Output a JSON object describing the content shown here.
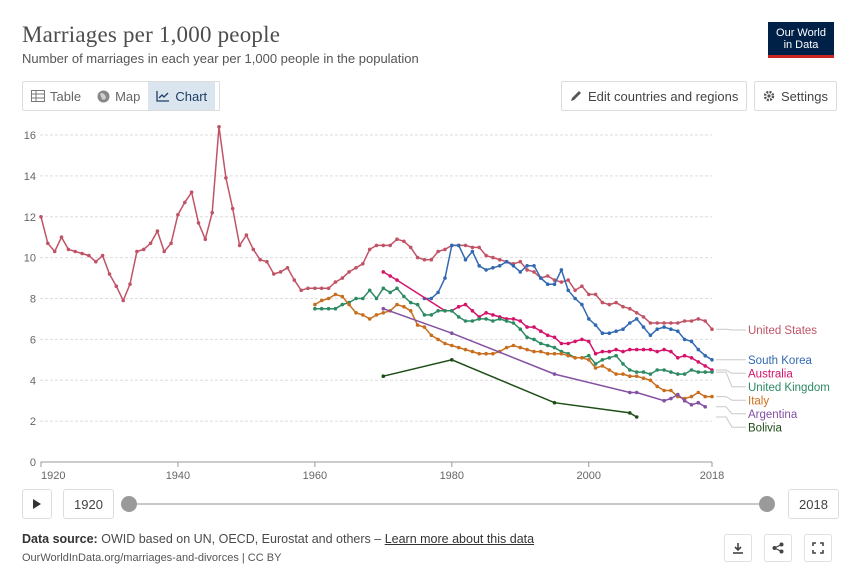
{
  "header": {
    "title": "Marriages per 1,000 people",
    "subtitle": "Number of marriages in each year per 1,000 people in the population",
    "logo_line1": "Our World",
    "logo_line2": "in Data"
  },
  "tabs": [
    {
      "label": "Table",
      "icon": "table-icon"
    },
    {
      "label": "Map",
      "icon": "globe-icon"
    },
    {
      "label": "Chart",
      "icon": "line-chart-icon",
      "active": true
    }
  ],
  "toolbar": {
    "edit_label": "Edit countries and regions",
    "settings_label": "Settings"
  },
  "timeline": {
    "start_year": "1920",
    "end_year": "2018",
    "range_start_fraction": 0.0,
    "range_end_fraction": 1.0
  },
  "footer": {
    "source_label": "Data source:",
    "source_text": "OWID based on UN, OECD, Eurostat and others –",
    "learn_more": "Learn more about this data",
    "attribution": "OurWorldInData.org/marriages-and-divorces | CC BY"
  },
  "chart_data": {
    "type": "line",
    "title": "Marriages per 1,000 people",
    "xlim": [
      1920,
      2018
    ],
    "ylim": [
      0,
      16
    ],
    "xticks": [
      1920,
      1940,
      1960,
      1980,
      2000,
      2018
    ],
    "yticks": [
      0,
      2,
      4,
      6,
      8,
      10,
      12,
      14,
      16
    ],
    "grid": true,
    "legend": "right",
    "series": [
      {
        "name": "United States",
        "color": "#c05466",
        "x": [
          1920,
          1921,
          1922,
          1923,
          1924,
          1925,
          1926,
          1927,
          1928,
          1929,
          1930,
          1931,
          1932,
          1933,
          1934,
          1935,
          1936,
          1937,
          1938,
          1939,
          1940,
          1941,
          1942,
          1943,
          1944,
          1945,
          1946,
          1947,
          1948,
          1949,
          1950,
          1951,
          1952,
          1953,
          1954,
          1955,
          1956,
          1957,
          1958,
          1959,
          1960,
          1961,
          1962,
          1963,
          1964,
          1965,
          1966,
          1967,
          1968,
          1969,
          1970,
          1971,
          1972,
          1973,
          1974,
          1975,
          1976,
          1977,
          1978,
          1979,
          1980,
          1981,
          1982,
          1983,
          1984,
          1985,
          1986,
          1987,
          1988,
          1989,
          1990,
          1991,
          1992,
          1993,
          1994,
          1995,
          1996,
          1997,
          1998,
          1999,
          2000,
          2001,
          2002,
          2003,
          2004,
          2005,
          2006,
          2007,
          2008,
          2009,
          2010,
          2011,
          2012,
          2013,
          2014,
          2015,
          2016,
          2017,
          2018
        ],
        "values": [
          12.0,
          10.7,
          10.3,
          11.0,
          10.4,
          10.3,
          10.2,
          10.1,
          9.8,
          10.1,
          9.2,
          8.6,
          7.9,
          8.7,
          10.3,
          10.4,
          10.7,
          11.3,
          10.3,
          10.7,
          12.1,
          12.7,
          13.2,
          11.7,
          10.9,
          12.2,
          16.4,
          13.9,
          12.4,
          10.6,
          11.1,
          10.4,
          9.9,
          9.8,
          9.2,
          9.3,
          9.5,
          8.9,
          8.4,
          8.5,
          8.5,
          8.5,
          8.5,
          8.8,
          9.0,
          9.3,
          9.5,
          9.7,
          10.4,
          10.6,
          10.6,
          10.6,
          10.9,
          10.8,
          10.5,
          10.0,
          9.9,
          9.9,
          10.3,
          10.4,
          10.6,
          10.6,
          10.6,
          10.5,
          10.5,
          10.1,
          10.0,
          9.9,
          9.8,
          9.7,
          9.8,
          9.4,
          9.3,
          9.0,
          9.1,
          8.9,
          8.8,
          8.9,
          8.4,
          8.6,
          8.2,
          8.2,
          7.8,
          7.7,
          7.8,
          7.6,
          7.5,
          7.3,
          7.1,
          6.8,
          6.8,
          6.8,
          6.8,
          6.8,
          6.9,
          6.9,
          7.0,
          6.9,
          6.5
        ]
      },
      {
        "name": "South Korea",
        "color": "#3269b0",
        "x": [
          1976,
          1977,
          1978,
          1979,
          1980,
          1981,
          1982,
          1983,
          1984,
          1985,
          1986,
          1987,
          1988,
          1989,
          1990,
          1991,
          1992,
          1993,
          1994,
          1995,
          1996,
          1997,
          1998,
          1999,
          2000,
          2001,
          2002,
          2003,
          2004,
          2005,
          2006,
          2007,
          2008,
          2009,
          2010,
          2011,
          2012,
          2013,
          2014,
          2015,
          2016,
          2017,
          2018
        ],
        "values": [
          8.0,
          8.0,
          8.3,
          9.0,
          10.6,
          10.6,
          9.9,
          10.3,
          9.6,
          9.4,
          9.5,
          9.6,
          9.8,
          9.6,
          9.3,
          9.6,
          9.6,
          9.0,
          8.7,
          8.7,
          9.4,
          8.4,
          8.0,
          7.7,
          7.0,
          6.7,
          6.3,
          6.3,
          6.4,
          6.5,
          6.8,
          7.0,
          6.6,
          6.2,
          6.5,
          6.6,
          6.5,
          6.4,
          6.0,
          5.9,
          5.5,
          5.2,
          5.0
        ]
      },
      {
        "name": "Australia",
        "color": "#d4136b",
        "x": [
          1970,
          1971,
          1972,
          1979,
          1980,
          1981,
          1982,
          1983,
          1984,
          1985,
          1986,
          1987,
          1988,
          1989,
          1990,
          1991,
          1992,
          1993,
          1994,
          1995,
          1996,
          1997,
          1998,
          1999,
          2000,
          2001,
          2002,
          2003,
          2004,
          2005,
          2006,
          2007,
          2008,
          2009,
          2010,
          2011,
          2012,
          2013,
          2014,
          2015,
          2016,
          2017,
          2018
        ],
        "values": [
          9.3,
          9.1,
          8.9,
          7.4,
          7.4,
          7.6,
          7.7,
          7.4,
          7.1,
          7.3,
          7.2,
          7.1,
          7.0,
          7.0,
          6.9,
          6.6,
          6.6,
          6.4,
          6.2,
          6.1,
          5.8,
          5.8,
          5.9,
          6.0,
          5.9,
          5.3,
          5.4,
          5.4,
          5.5,
          5.4,
          5.5,
          5.5,
          5.5,
          5.5,
          5.4,
          5.5,
          5.4,
          5.1,
          5.2,
          5.1,
          4.9,
          4.7,
          4.5
        ]
      },
      {
        "name": "United Kingdom",
        "color": "#2d8a62",
        "x": [
          1960,
          1961,
          1962,
          1963,
          1964,
          1965,
          1966,
          1967,
          1968,
          1969,
          1970,
          1971,
          1972,
          1973,
          1974,
          1975,
          1976,
          1977,
          1978,
          1979,
          1980,
          1981,
          1982,
          1983,
          1984,
          1985,
          1986,
          1987,
          1988,
          1989,
          1990,
          1991,
          1992,
          1993,
          1994,
          1995,
          1996,
          1997,
          1998,
          1999,
          2000,
          2001,
          2002,
          2003,
          2004,
          2005,
          2006,
          2007,
          2008,
          2009,
          2010,
          2011,
          2012,
          2013,
          2014,
          2015,
          2016,
          2017,
          2018
        ],
        "values": [
          7.5,
          7.5,
          7.5,
          7.5,
          7.7,
          7.8,
          8.0,
          8.0,
          8.4,
          8.0,
          8.5,
          8.3,
          8.5,
          8.1,
          7.8,
          7.7,
          7.2,
          7.2,
          7.4,
          7.4,
          7.4,
          7.1,
          6.9,
          6.9,
          7.0,
          7.0,
          6.9,
          7.0,
          6.9,
          6.8,
          6.5,
          6.1,
          6.0,
          5.8,
          5.7,
          5.6,
          5.4,
          5.3,
          5.1,
          5.1,
          5.2,
          4.8,
          5.0,
          5.1,
          5.2,
          4.8,
          4.5,
          4.4,
          4.4,
          4.3,
          4.5,
          4.5,
          4.4,
          4.3,
          4.3,
          4.5,
          4.4,
          4.4,
          4.4
        ]
      },
      {
        "name": "Italy",
        "color": "#c86f1f",
        "x": [
          1960,
          1961,
          1962,
          1963,
          1964,
          1965,
          1966,
          1967,
          1968,
          1969,
          1970,
          1971,
          1972,
          1973,
          1974,
          1975,
          1976,
          1977,
          1978,
          1979,
          1980,
          1981,
          1982,
          1983,
          1984,
          1985,
          1986,
          1987,
          1988,
          1989,
          1990,
          1991,
          1992,
          1993,
          1994,
          1995,
          1996,
          1997,
          1998,
          1999,
          2000,
          2001,
          2002,
          2003,
          2004,
          2005,
          2006,
          2007,
          2008,
          2009,
          2010,
          2011,
          2012,
          2013,
          2014,
          2015,
          2016,
          2017,
          2018
        ],
        "values": [
          7.7,
          7.9,
          8.0,
          8.2,
          8.1,
          7.7,
          7.3,
          7.2,
          7.0,
          7.2,
          7.3,
          7.4,
          7.7,
          7.6,
          7.4,
          6.7,
          6.6,
          6.2,
          6.0,
          5.8,
          5.7,
          5.6,
          5.5,
          5.4,
          5.3,
          5.3,
          5.3,
          5.4,
          5.6,
          5.7,
          5.6,
          5.5,
          5.4,
          5.4,
          5.3,
          5.3,
          5.3,
          5.2,
          5.1,
          5.1,
          5.0,
          4.6,
          4.7,
          4.5,
          4.3,
          4.3,
          4.2,
          4.2,
          4.1,
          4.0,
          3.7,
          3.5,
          3.5,
          3.2,
          3.1,
          3.2,
          3.4,
          3.2,
          3.2
        ]
      },
      {
        "name": "Argentina",
        "color": "#8350a2",
        "x": [
          1970,
          1980,
          1995,
          2006,
          2007,
          2011,
          2012,
          2013,
          2014,
          2015,
          2016,
          2017
        ],
        "values": [
          7.5,
          6.3,
          4.3,
          3.4,
          3.4,
          3.0,
          3.1,
          3.3,
          3.0,
          2.8,
          2.9,
          2.7
        ]
      },
      {
        "name": "Bolivia",
        "color": "#1e4d17",
        "x": [
          1970,
          1980,
          1995,
          2006,
          2007
        ],
        "values": [
          4.2,
          5.0,
          2.9,
          2.4,
          2.2
        ]
      }
    ]
  }
}
